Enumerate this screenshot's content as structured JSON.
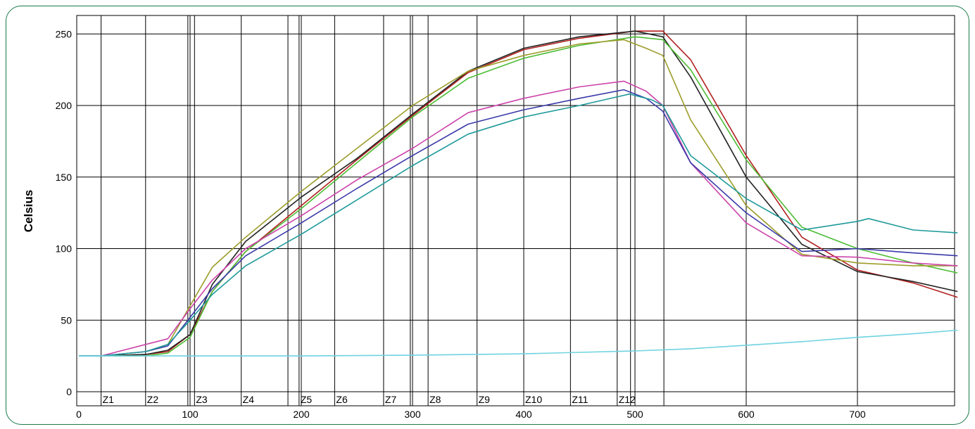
{
  "chart_data": {
    "type": "line",
    "xlabel": "",
    "ylabel": "Celsius",
    "xlim": [
      0,
      790
    ],
    "ylim": [
      0,
      260
    ],
    "x_ticks": [
      0,
      100,
      200,
      300,
      400,
      500,
      600,
      700
    ],
    "y_ticks": [
      0,
      50,
      100,
      150,
      200,
      250
    ],
    "grid": true,
    "legend": "none",
    "zones": [
      {
        "label": "Z1",
        "start": 20,
        "end": 60
      },
      {
        "label": "Z2",
        "start": 60,
        "end": 98
      },
      {
        "label": "Z3",
        "start": 104,
        "end": 146
      },
      {
        "label": "Z4",
        "start": 146,
        "end": 188
      },
      {
        "label": "Z5",
        "start": 198,
        "end": 230
      },
      {
        "label": "Z6",
        "start": 230,
        "end": 274
      },
      {
        "label": "Z7",
        "start": 274,
        "end": 314
      },
      {
        "label": "Z8",
        "start": 314,
        "end": 358
      },
      {
        "label": "Z9",
        "start": 358,
        "end": 400
      },
      {
        "label": "Z10",
        "start": 400,
        "end": 442
      },
      {
        "label": "Z11",
        "start": 442,
        "end": 484
      },
      {
        "label": "Z12",
        "start": 484,
        "end": 526
      }
    ],
    "zone_boundaries": [
      20,
      60,
      98,
      104,
      146,
      188,
      198,
      230,
      274,
      298,
      314,
      358,
      400,
      442,
      484,
      496,
      526
    ],
    "series": [
      {
        "color": "#b22020",
        "x": [
          0,
          20,
          60,
          80,
          100,
          120,
          150,
          200,
          250,
          300,
          350,
          400,
          450,
          500,
          525,
          550,
          600,
          650,
          700,
          750,
          790
        ],
        "y": [
          25,
          25,
          26,
          28,
          40,
          70,
          98,
          130,
          162,
          193,
          223,
          239,
          247,
          252,
          252,
          232,
          165,
          108,
          85,
          76,
          66
        ]
      },
      {
        "color": "#222222",
        "x": [
          0,
          20,
          60,
          80,
          100,
          120,
          150,
          200,
          250,
          300,
          350,
          400,
          450,
          500,
          525,
          550,
          600,
          650,
          700,
          750,
          790
        ],
        "y": [
          25,
          25,
          26,
          29,
          40,
          75,
          105,
          136,
          163,
          194,
          224,
          240,
          248,
          252,
          248,
          220,
          150,
          103,
          84,
          77,
          70
        ]
      },
      {
        "color": "#4cbd34",
        "x": [
          0,
          20,
          60,
          80,
          100,
          120,
          150,
          200,
          250,
          300,
          350,
          400,
          450,
          500,
          525,
          550,
          600,
          650,
          700,
          750,
          790
        ],
        "y": [
          25,
          25,
          25,
          27,
          38,
          70,
          98,
          128,
          160,
          192,
          219,
          233,
          242,
          248,
          246,
          225,
          162,
          115,
          100,
          90,
          83
        ]
      },
      {
        "color": "#9c9c2a",
        "x": [
          0,
          20,
          60,
          80,
          100,
          120,
          150,
          200,
          250,
          300,
          350,
          400,
          450,
          490,
          510,
          525,
          550,
          600,
          650,
          700,
          750,
          790
        ],
        "y": [
          25,
          25,
          28,
          33,
          60,
          87,
          108,
          140,
          170,
          200,
          224,
          235,
          243,
          246,
          240,
          235,
          190,
          130,
          96,
          90,
          88,
          88
        ]
      },
      {
        "color": "#cc44aa",
        "x": [
          0,
          20,
          60,
          80,
          100,
          120,
          150,
          200,
          250,
          300,
          350,
          400,
          450,
          490,
          510,
          525,
          550,
          600,
          650,
          700,
          750,
          790
        ],
        "y": [
          25,
          25,
          33,
          37,
          58,
          78,
          100,
          123,
          148,
          170,
          195,
          205,
          213,
          217,
          210,
          200,
          160,
          118,
          95,
          94,
          90,
          88
        ]
      },
      {
        "color": "#3a3aaa",
        "x": [
          0,
          20,
          60,
          80,
          100,
          120,
          150,
          200,
          250,
          300,
          350,
          400,
          450,
          490,
          510,
          525,
          550,
          600,
          650,
          700,
          750,
          790
        ],
        "y": [
          25,
          25,
          28,
          32,
          52,
          72,
          95,
          118,
          142,
          165,
          187,
          197,
          205,
          211,
          205,
          196,
          160,
          125,
          98,
          100,
          97,
          95
        ]
      },
      {
        "color": "#1f9a9a",
        "x": [
          0,
          20,
          60,
          80,
          100,
          120,
          150,
          200,
          250,
          300,
          350,
          400,
          450,
          495,
          515,
          525,
          550,
          600,
          650,
          700,
          710,
          750,
          790
        ],
        "y": [
          25,
          25,
          28,
          33,
          50,
          68,
          88,
          110,
          134,
          158,
          180,
          192,
          200,
          208,
          204,
          200,
          165,
          135,
          113,
          119,
          121,
          113,
          111
        ]
      },
      {
        "color": "#6fd3e0",
        "x": [
          0,
          50,
          100,
          200,
          300,
          400,
          450,
          500,
          550,
          600,
          650,
          700,
          750,
          790
        ],
        "y": [
          25,
          25,
          25,
          25,
          25.5,
          26.5,
          27.5,
          28.5,
          30,
          32.5,
          35,
          38,
          40.5,
          43
        ]
      }
    ]
  }
}
